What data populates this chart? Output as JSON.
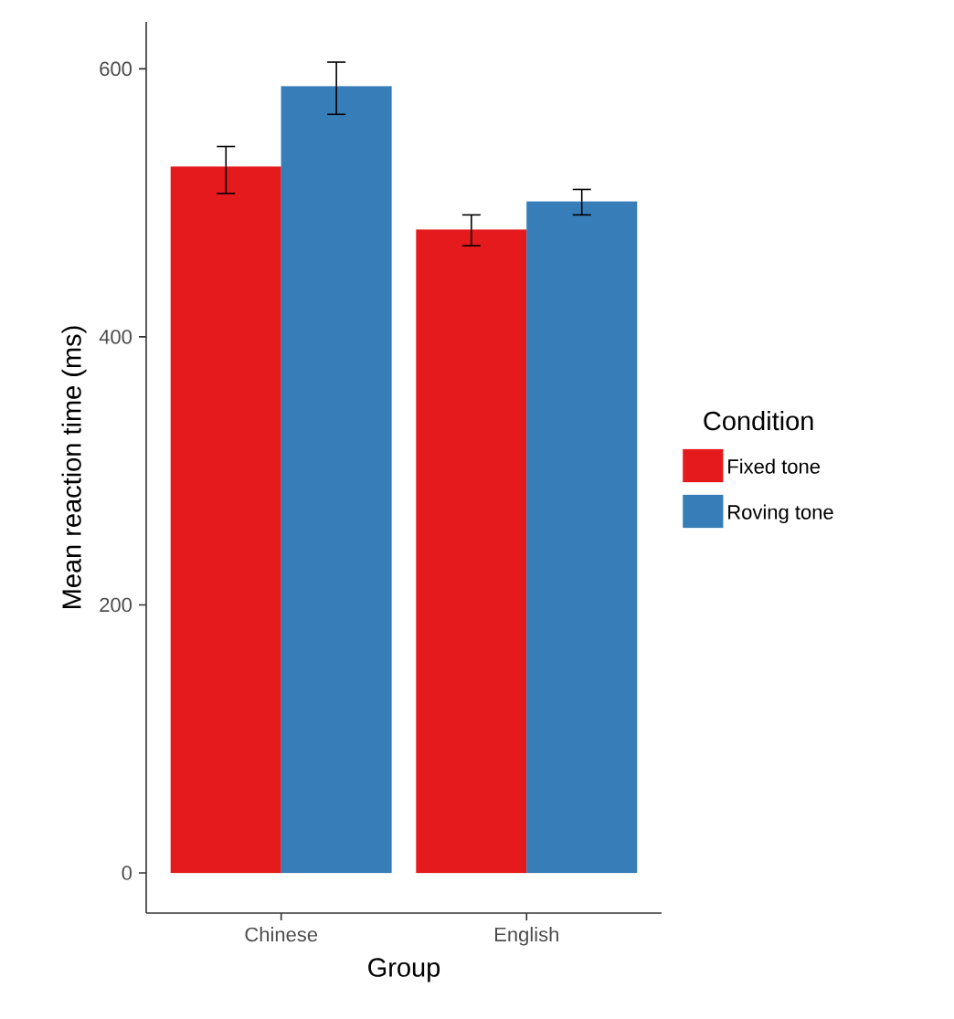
{
  "chart_data": {
    "type": "bar",
    "xlabel": "Group",
    "ylabel": "Mean reaction time (ms)",
    "legend_title": "Condition",
    "categories": [
      "Chinese",
      "English"
    ],
    "series": [
      {
        "name": "Fixed tone",
        "color": "#e41a1c",
        "values": [
          527,
          480
        ],
        "errors": [
          [
            507,
            542
          ],
          [
            468,
            491
          ]
        ]
      },
      {
        "name": "Roving tone",
        "color": "#377eb8",
        "values": [
          587,
          501
        ],
        "errors": [
          [
            566,
            605
          ],
          [
            491,
            510
          ]
        ]
      }
    ],
    "ylim": [
      -30,
      635
    ],
    "yticks": [
      0,
      200,
      400,
      600
    ],
    "grid": false,
    "legend": "right"
  }
}
